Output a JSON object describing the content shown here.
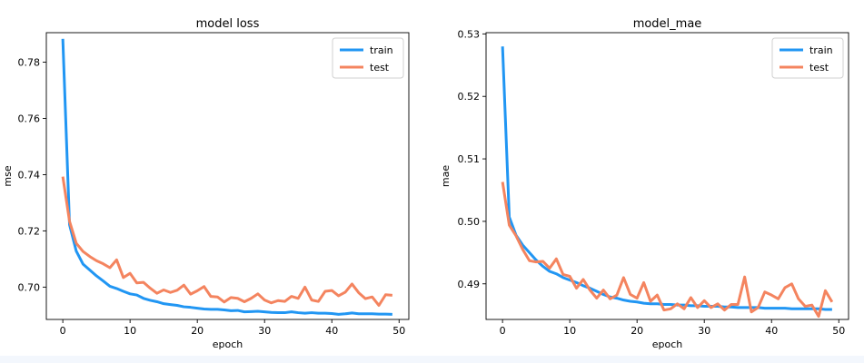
{
  "chart_data": [
    {
      "type": "line",
      "title": "model loss",
      "xlabel": "epoch",
      "ylabel": "mse",
      "xlim": [
        -2.45,
        51.45
      ],
      "ylim": [
        0.6885,
        0.7905
      ],
      "xticks": [
        0,
        10,
        20,
        30,
        40,
        50
      ],
      "yticks": [
        0.7,
        0.72,
        0.74,
        0.76,
        0.78
      ],
      "ytick_labels": [
        "0.70",
        "0.72",
        "0.74",
        "0.76",
        "0.78"
      ],
      "legend_position": "top-right",
      "x": [
        0,
        1,
        2,
        3,
        4,
        5,
        6,
        7,
        8,
        9,
        10,
        11,
        12,
        13,
        14,
        15,
        16,
        17,
        18,
        19,
        20,
        21,
        22,
        23,
        24,
        25,
        26,
        27,
        28,
        29,
        30,
        31,
        32,
        33,
        34,
        35,
        36,
        37,
        38,
        39,
        40,
        41,
        42,
        43,
        44,
        45,
        46,
        47,
        48,
        49
      ],
      "series": [
        {
          "name": "train",
          "color": "#2196f3",
          "values": [
            0.7883,
            0.7222,
            0.7128,
            0.7082,
            0.7061,
            0.704,
            0.7022,
            0.7003,
            0.6995,
            0.6985,
            0.6976,
            0.6972,
            0.696,
            0.6953,
            0.6948,
            0.6941,
            0.6938,
            0.6935,
            0.693,
            0.6928,
            0.6925,
            0.6922,
            0.6921,
            0.6921,
            0.6919,
            0.6916,
            0.6917,
            0.6912,
            0.6913,
            0.6914,
            0.6912,
            0.691,
            0.6909,
            0.6909,
            0.6912,
            0.6909,
            0.6907,
            0.6909,
            0.6907,
            0.6907,
            0.6906,
            0.6903,
            0.6905,
            0.6908,
            0.6905,
            0.6905,
            0.6905,
            0.6904,
            0.6904,
            0.6903
          ]
        },
        {
          "name": "test",
          "color": "#f4845f",
          "values": [
            0.7393,
            0.7234,
            0.7156,
            0.7127,
            0.7109,
            0.7094,
            0.7083,
            0.7069,
            0.7097,
            0.7034,
            0.7049,
            0.7015,
            0.7017,
            0.6996,
            0.6978,
            0.699,
            0.6981,
            0.6989,
            0.7007,
            0.6975,
            0.6987,
            0.7002,
            0.6967,
            0.6965,
            0.6947,
            0.6963,
            0.696,
            0.6948,
            0.696,
            0.6976,
            0.6954,
            0.6944,
            0.6952,
            0.6949,
            0.6967,
            0.696,
            0.7,
            0.6954,
            0.6949,
            0.6985,
            0.6988,
            0.6969,
            0.6982,
            0.7011,
            0.698,
            0.6959,
            0.6965,
            0.6935,
            0.6973,
            0.6971
          ]
        }
      ]
    },
    {
      "type": "line",
      "title": "model_mae",
      "xlabel": "epoch",
      "ylabel": "mae",
      "xlim": [
        -2.45,
        51.45
      ],
      "ylim": [
        0.4843,
        0.5302
      ],
      "xticks": [
        0,
        10,
        20,
        30,
        40,
        50
      ],
      "yticks": [
        0.49,
        0.5,
        0.51,
        0.52,
        0.53
      ],
      "ytick_labels": [
        "0.49",
        "0.50",
        "0.51",
        "0.52",
        "0.53"
      ],
      "legend_position": "top-right",
      "x": [
        0,
        1,
        2,
        3,
        4,
        5,
        6,
        7,
        8,
        9,
        10,
        11,
        12,
        13,
        14,
        15,
        16,
        17,
        18,
        19,
        20,
        21,
        22,
        23,
        24,
        25,
        26,
        27,
        28,
        29,
        30,
        31,
        32,
        33,
        34,
        35,
        36,
        37,
        38,
        39,
        40,
        41,
        42,
        43,
        44,
        45,
        46,
        47,
        48,
        49
      ],
      "series": [
        {
          "name": "train",
          "color": "#2196f3",
          "values": [
            0.528,
            0.5007,
            0.4978,
            0.4962,
            0.495,
            0.4938,
            0.4928,
            0.492,
            0.4916,
            0.491,
            0.4906,
            0.4902,
            0.4897,
            0.4893,
            0.4888,
            0.4883,
            0.4879,
            0.4877,
            0.4874,
            0.4872,
            0.4871,
            0.4869,
            0.4868,
            0.4868,
            0.4867,
            0.4867,
            0.4866,
            0.4866,
            0.4865,
            0.4865,
            0.4864,
            0.4864,
            0.4864,
            0.4863,
            0.4863,
            0.4862,
            0.4862,
            0.4862,
            0.4862,
            0.4861,
            0.4861,
            0.4861,
            0.4861,
            0.486,
            0.486,
            0.486,
            0.486,
            0.486,
            0.4859,
            0.4859
          ]
        },
        {
          "name": "test",
          "color": "#f4845f",
          "values": [
            0.5063,
            0.4994,
            0.4977,
            0.4955,
            0.4937,
            0.4935,
            0.4936,
            0.4925,
            0.494,
            0.4915,
            0.4912,
            0.4893,
            0.4907,
            0.489,
            0.4877,
            0.489,
            0.4876,
            0.4882,
            0.491,
            0.4883,
            0.4877,
            0.4902,
            0.4872,
            0.4882,
            0.4858,
            0.486,
            0.4868,
            0.486,
            0.4878,
            0.4862,
            0.4873,
            0.4862,
            0.4868,
            0.4858,
            0.4867,
            0.4867,
            0.4911,
            0.4855,
            0.4862,
            0.4887,
            0.4882,
            0.4876,
            0.4894,
            0.49,
            0.4876,
            0.4864,
            0.4866,
            0.4848,
            0.4889,
            0.4871
          ]
        }
      ]
    }
  ]
}
